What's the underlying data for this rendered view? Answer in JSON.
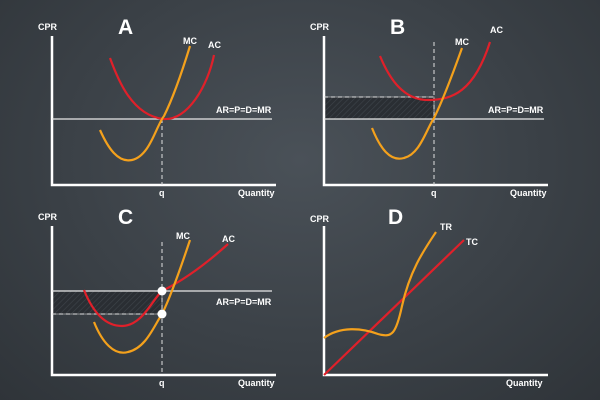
{
  "panels": [
    {
      "id": "A",
      "title": "A",
      "y_label": "CPR",
      "x_label": "Quantity",
      "line_label": "AR=P=D=MR",
      "mc_label": "MC",
      "ac_label": "AC",
      "q_label": "q"
    },
    {
      "id": "B",
      "title": "B",
      "y_label": "CPR",
      "x_label": "Quantity",
      "line_label": "AR=P=D=MR",
      "mc_label": "MC",
      "ac_label": "AC",
      "q_label": "q"
    },
    {
      "id": "C",
      "title": "C",
      "y_label": "CPR",
      "x_label": "Quantity",
      "line_label": "AR=P=D=MR",
      "mc_label": "MC",
      "ac_label": "AC",
      "q_label": "q"
    },
    {
      "id": "D",
      "title": "D",
      "y_label": "CPR",
      "x_label": "Quantity",
      "tr_label": "TR",
      "tc_label": "TC"
    }
  ],
  "colors": {
    "mc": "#f4a11c",
    "ac": "#e0202a",
    "tr": "#f4a11c",
    "tc": "#e0202a",
    "axis": "#ffffff"
  }
}
